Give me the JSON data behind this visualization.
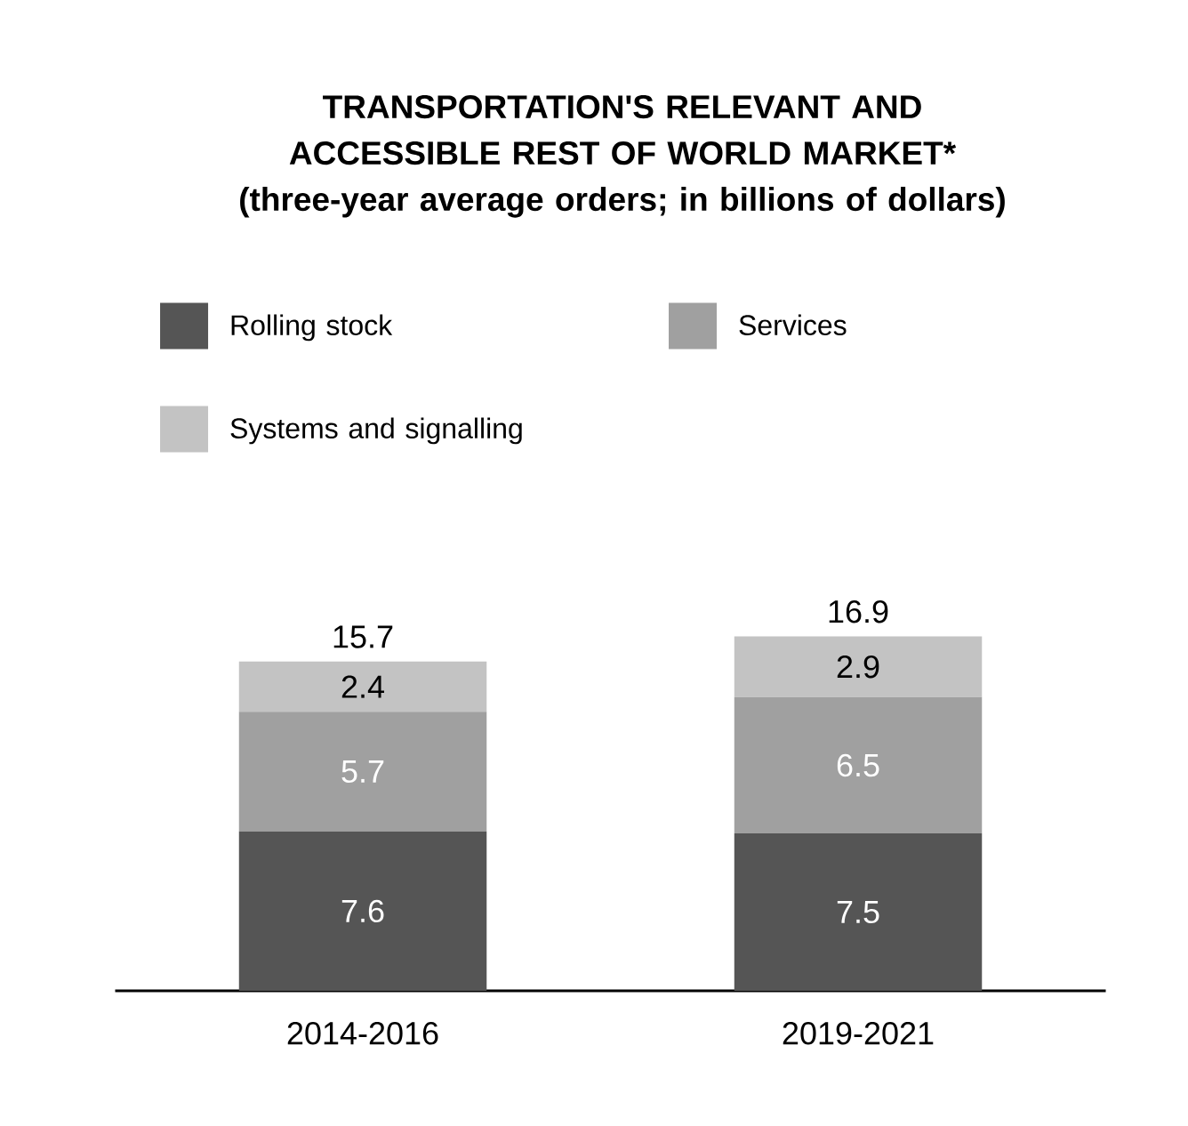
{
  "chart_data": {
    "type": "bar",
    "stacked": true,
    "title": "TRANSPORTATION'S RELEVANT AND ACCESSIBLE REST OF WORLD MARKET*",
    "subtitle": "(three-year average orders; in billions of dollars)",
    "categories": [
      "2014-2016",
      "2019-2021"
    ],
    "series": [
      {
        "name": "Rolling stock",
        "color": "#555555",
        "values": [
          7.6,
          7.5
        ]
      },
      {
        "name": "Services",
        "color": "#a0a0a0",
        "values": [
          5.7,
          6.5
        ]
      },
      {
        "name": "Systems and signalling",
        "color": "#c3c3c3",
        "values": [
          2.4,
          2.9
        ]
      }
    ],
    "totals": [
      "15.7",
      "16.9"
    ],
    "data_labels": true,
    "legend": "top left"
  }
}
